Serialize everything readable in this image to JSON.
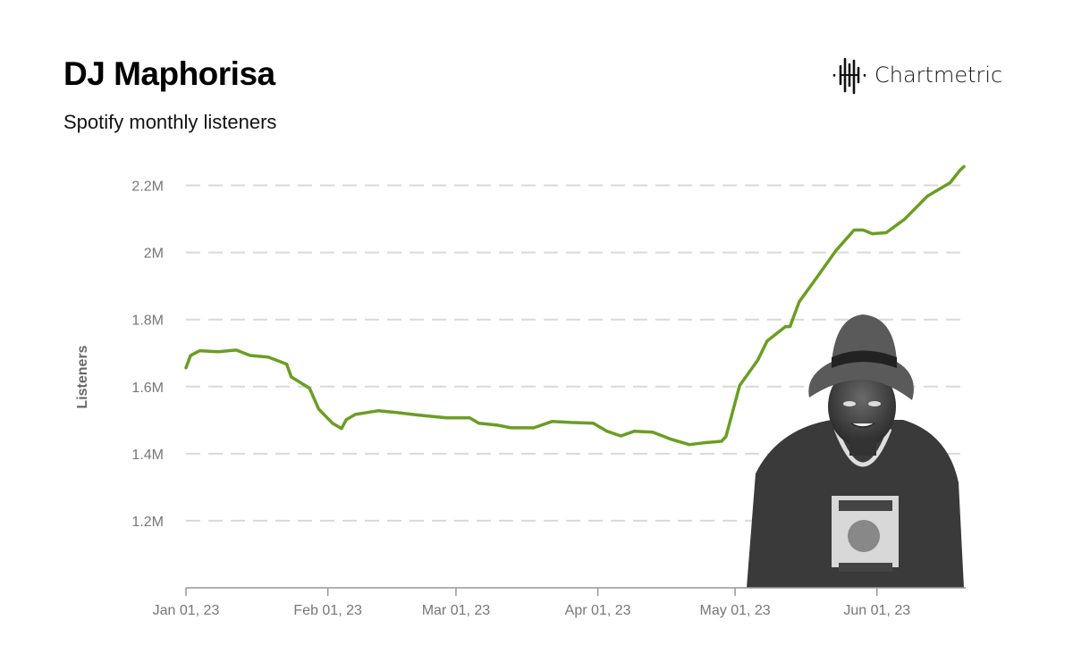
{
  "header": {
    "title": "DJ Maphorisa",
    "subtitle": "Spotify monthly listeners",
    "brand": "Chartmetric"
  },
  "chart_data": {
    "type": "line",
    "title": "DJ Maphorisa",
    "subtitle": "Spotify monthly listeners",
    "xlabel": "",
    "ylabel": "Listeners",
    "xlim": [
      "2023-01-01",
      "2023-06-20"
    ],
    "ylim": [
      1000000,
      2300000
    ],
    "y_ticks": [
      1200000,
      1400000,
      1600000,
      1800000,
      2000000,
      2200000
    ],
    "y_tick_labels": [
      "1.2M",
      "1.4M",
      "1.6M",
      "1.8M",
      "2M",
      "2.2M"
    ],
    "x_ticks": [
      "2023-01-01",
      "2023-02-01",
      "2023-03-01",
      "2023-04-01",
      "2023-05-01",
      "2023-06-01"
    ],
    "x_tick_labels": [
      "Jan 01, 23",
      "Feb 01, 23",
      "Mar 01, 23",
      "Apr 01, 23",
      "May 01, 23",
      "Jun 01, 23"
    ],
    "grid": "horizontal dashed",
    "line_color": "#6a9e23",
    "series": [
      {
        "x": [
          "2023-01-01",
          "2023-01-02",
          "2023-01-04",
          "2023-01-08",
          "2023-01-12",
          "2023-01-15",
          "2023-01-19",
          "2023-01-23",
          "2023-01-24",
          "2023-01-28",
          "2023-01-30",
          "2023-02-02",
          "2023-02-04",
          "2023-02-05",
          "2023-02-07",
          "2023-02-12",
          "2023-02-16",
          "2023-02-21",
          "2023-02-27",
          "2023-03-04",
          "2023-03-06",
          "2023-03-10",
          "2023-03-13",
          "2023-03-18",
          "2023-03-22",
          "2023-03-26",
          "2023-03-31",
          "2023-04-03",
          "2023-04-06",
          "2023-04-09",
          "2023-04-13",
          "2023-04-17",
          "2023-04-21",
          "2023-04-24",
          "2023-04-28",
          "2023-04-29",
          "2023-05-02",
          "2023-05-06",
          "2023-05-08",
          "2023-05-12",
          "2023-05-13",
          "2023-05-15",
          "2023-05-19",
          "2023-05-23",
          "2023-05-27",
          "2023-05-29",
          "2023-05-31",
          "2023-06-03",
          "2023-06-07",
          "2023-06-12",
          "2023-06-17",
          "2023-06-19",
          "2023-06-20"
        ],
        "y": [
          1656000,
          1693000,
          1707000,
          1704000,
          1709000,
          1693000,
          1688000,
          1667000,
          1629000,
          1595000,
          1533000,
          1491000,
          1475000,
          1501000,
          1517000,
          1528000,
          1523000,
          1515000,
          1507000,
          1507000,
          1491000,
          1485000,
          1477000,
          1477000,
          1496000,
          1493000,
          1491000,
          1467000,
          1453000,
          1467000,
          1464000,
          1443000,
          1427000,
          1432000,
          1437000,
          1451000,
          1603000,
          1680000,
          1736000,
          1779000,
          1779000,
          1853000,
          1928000,
          2005000,
          2067000,
          2067000,
          2056000,
          2059000,
          2099000,
          2168000,
          2208000,
          2243000,
          2256000
        ]
      }
    ],
    "annotation_image": "artist-photo"
  }
}
